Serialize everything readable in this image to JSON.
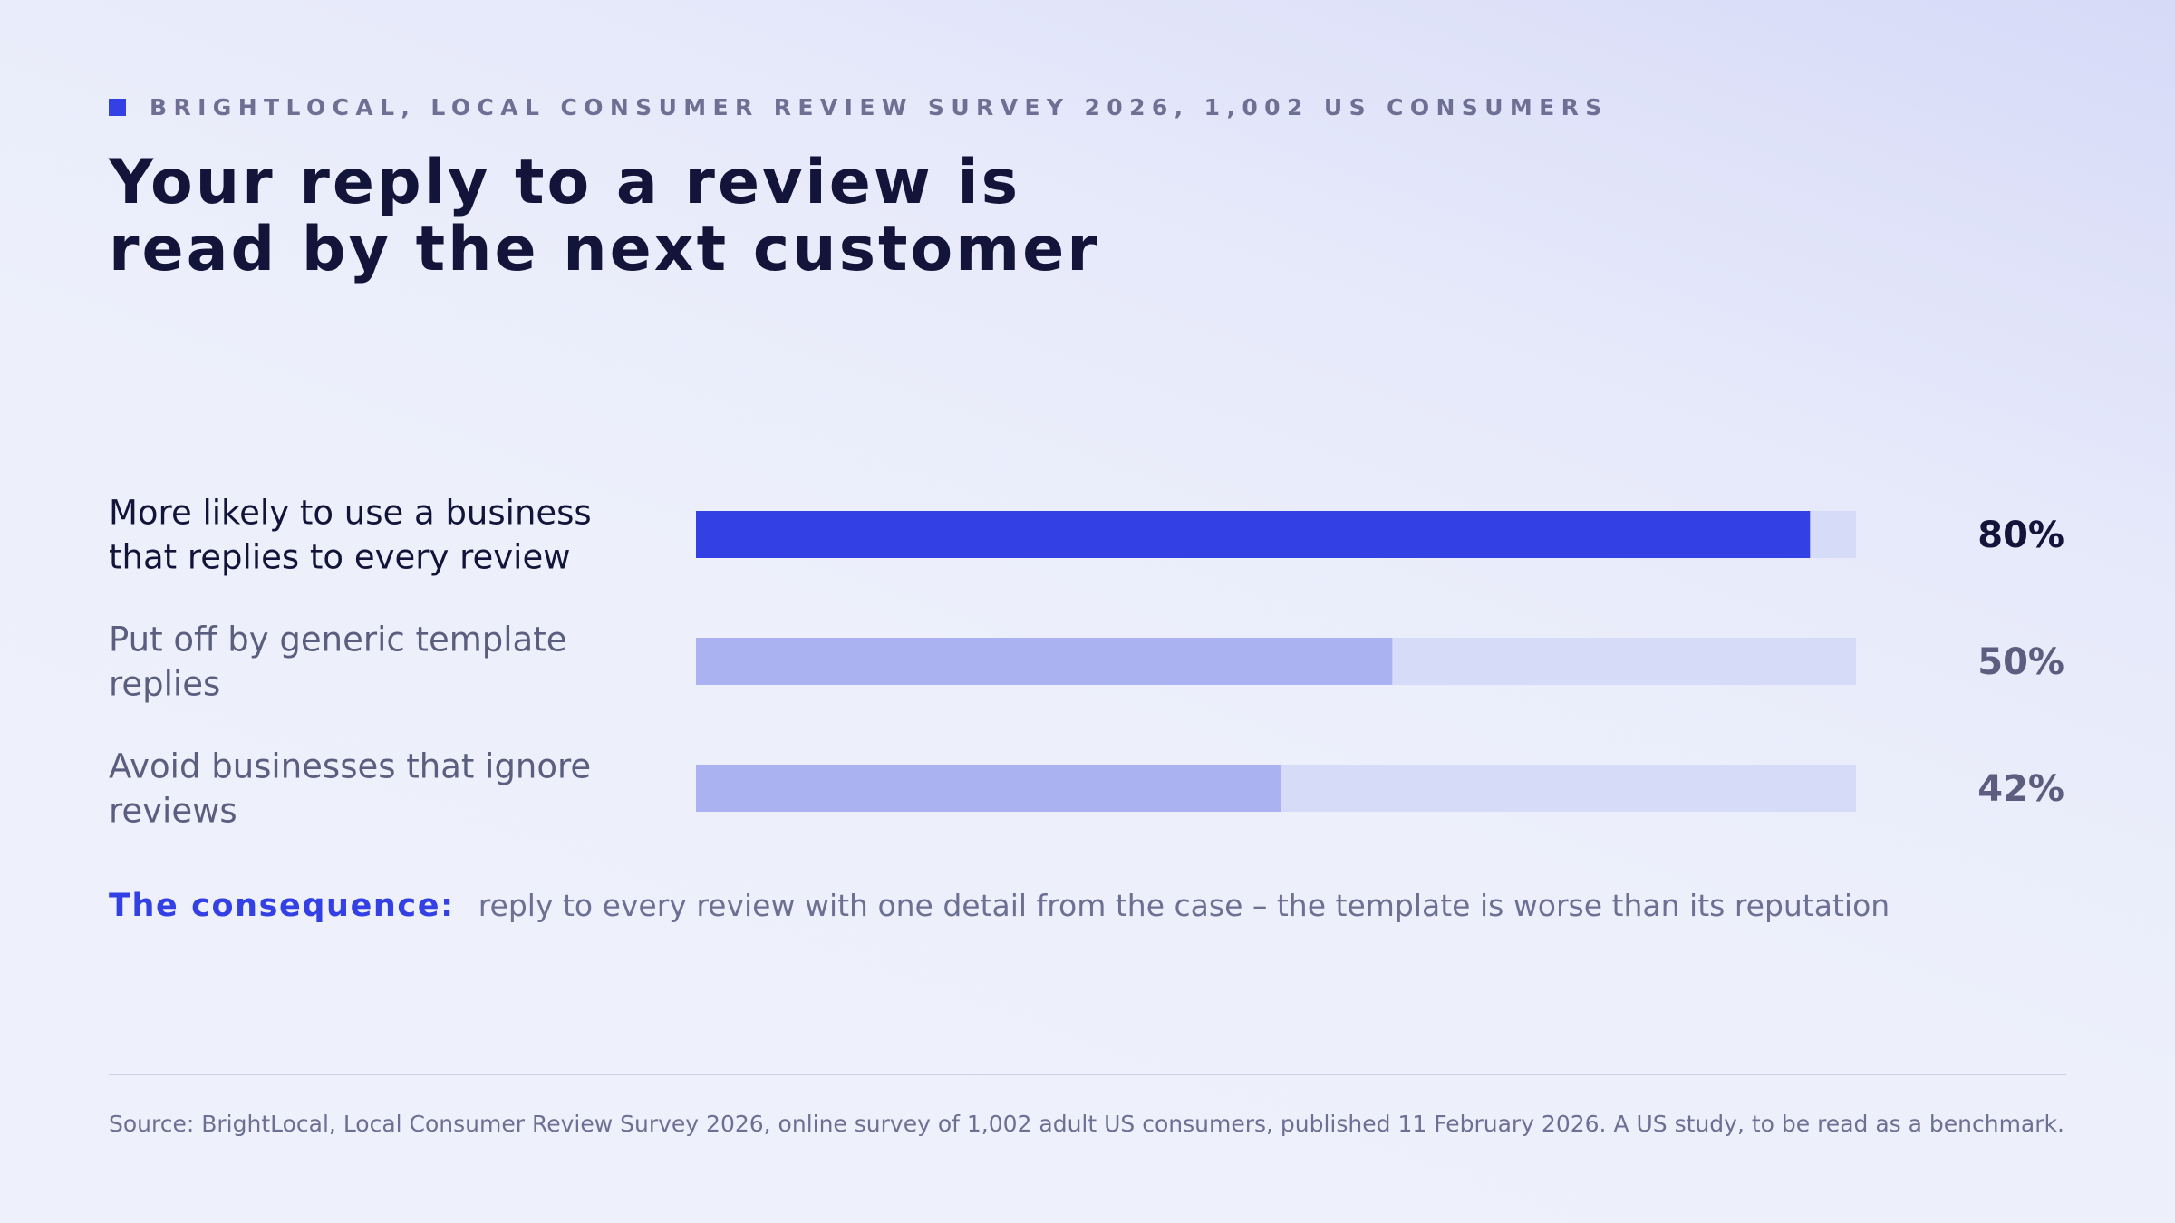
{
  "kicker": "BRIGHTLOCAL, LOCAL CONSUMER REVIEW SURVEY 2026, 1,002 US CONSUMERS",
  "headline": {
    "line1": "Your reply to a review is",
    "line2": "read by the next customer"
  },
  "colors": {
    "accent": "#3340e4",
    "bar_highlight": "#3340e4",
    "bar_muted": "#abb2f2",
    "track": "#d6dbf7",
    "text_dark": "#13143a",
    "text_muted": "#5b5e7e"
  },
  "chart_data": {
    "type": "bar",
    "orientation": "horizontal",
    "categories": [
      [
        "More likely to use a business",
        "that replies to every review"
      ],
      [
        "Put off by generic template",
        "replies"
      ],
      [
        "Avoid businesses that ignore",
        "reviews"
      ]
    ],
    "values": [
      80,
      50,
      42
    ],
    "value_labels": [
      "80%",
      "50%",
      "42%"
    ],
    "highlighted": [
      true,
      false,
      false
    ],
    "xlim": [
      0,
      83.3
    ],
    "unit": "%"
  },
  "consequence": {
    "label": "The consequence:",
    "text": "reply to every review with one detail from the case – the template is worse than its reputation"
  },
  "source": "Source: BrightLocal, Local Consumer Review Survey 2026, online survey of 1,002 adult US consumers, published 11 February 2026. A US study, to be read as a benchmark."
}
